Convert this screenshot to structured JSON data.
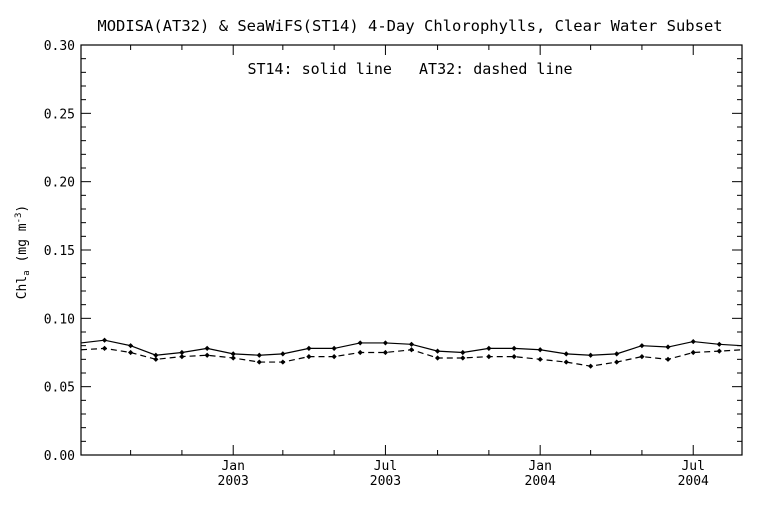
{
  "chart_data": {
    "type": "line",
    "title": "MODISA(AT32) & SeaWiFS(ST14) 4-Day Chlorophylls, Clear Water Subset",
    "annotation": "ST14: solid line   AT32: dashed line",
    "ylabel": "Chl_a (mg m^-3)",
    "ylabel_parts": {
      "base": "Chl",
      "sub": "a",
      "units_open": " (mg m",
      "sup": "-3",
      "units_close": ")"
    },
    "xlabel": "",
    "ylim": [
      0.0,
      0.3
    ],
    "xlim": [
      "2002-07-04",
      "2004-08-28"
    ],
    "yticks": [
      "0.00",
      "0.05",
      "0.10",
      "0.15",
      "0.20",
      "0.25",
      "0.30"
    ],
    "xticks": [
      {
        "date": "2003-01-01",
        "month": "Jan",
        "year": "2003"
      },
      {
        "date": "2003-07-01",
        "month": "Jul",
        "year": "2003"
      },
      {
        "date": "2004-01-01",
        "month": "Jan",
        "year": "2004"
      },
      {
        "date": "2004-07-01",
        "month": "Jul",
        "year": "2004"
      }
    ],
    "minor_xticks": [
      "2002-09-01",
      "2002-11-01",
      "2003-03-01",
      "2003-05-01",
      "2003-09-01",
      "2003-11-01",
      "2004-03-01",
      "2004-05-01"
    ],
    "grid": false,
    "series": [
      {
        "name": "ST14",
        "style": "solid",
        "x": [
          "2002-07-04",
          "2002-08-01",
          "2002-09-01",
          "2002-10-01",
          "2002-11-01",
          "2002-12-01",
          "2003-01-01",
          "2003-02-01",
          "2003-03-01",
          "2003-04-01",
          "2003-05-01",
          "2003-06-01",
          "2003-07-01",
          "2003-08-01",
          "2003-09-01",
          "2003-10-01",
          "2003-11-01",
          "2003-12-01",
          "2004-01-01",
          "2004-02-01",
          "2004-03-01",
          "2004-04-01",
          "2004-05-01",
          "2004-06-01",
          "2004-07-01",
          "2004-08-01",
          "2004-08-28"
        ],
        "values": [
          0.082,
          0.084,
          0.08,
          0.073,
          0.075,
          0.078,
          0.074,
          0.073,
          0.074,
          0.078,
          0.078,
          0.082,
          0.082,
          0.081,
          0.076,
          0.075,
          0.078,
          0.078,
          0.077,
          0.074,
          0.073,
          0.074,
          0.08,
          0.079,
          0.083,
          0.081,
          0.08
        ]
      },
      {
        "name": "AT32",
        "style": "dashed",
        "x": [
          "2002-07-04",
          "2002-08-01",
          "2002-09-01",
          "2002-10-01",
          "2002-11-01",
          "2002-12-01",
          "2003-01-01",
          "2003-02-01",
          "2003-03-01",
          "2003-04-01",
          "2003-05-01",
          "2003-06-01",
          "2003-07-01",
          "2003-08-01",
          "2003-09-01",
          "2003-10-01",
          "2003-11-01",
          "2003-12-01",
          "2004-01-01",
          "2004-02-01",
          "2004-03-01",
          "2004-04-01",
          "2004-05-01",
          "2004-06-01",
          "2004-07-01",
          "2004-08-01",
          "2004-08-28"
        ],
        "values": [
          0.077,
          0.078,
          0.075,
          0.07,
          0.072,
          0.073,
          0.071,
          0.068,
          0.068,
          0.072,
          0.072,
          0.075,
          0.075,
          0.077,
          0.071,
          0.071,
          0.072,
          0.072,
          0.07,
          0.068,
          0.065,
          0.068,
          0.072,
          0.07,
          0.075,
          0.076,
          0.077
        ]
      }
    ]
  }
}
